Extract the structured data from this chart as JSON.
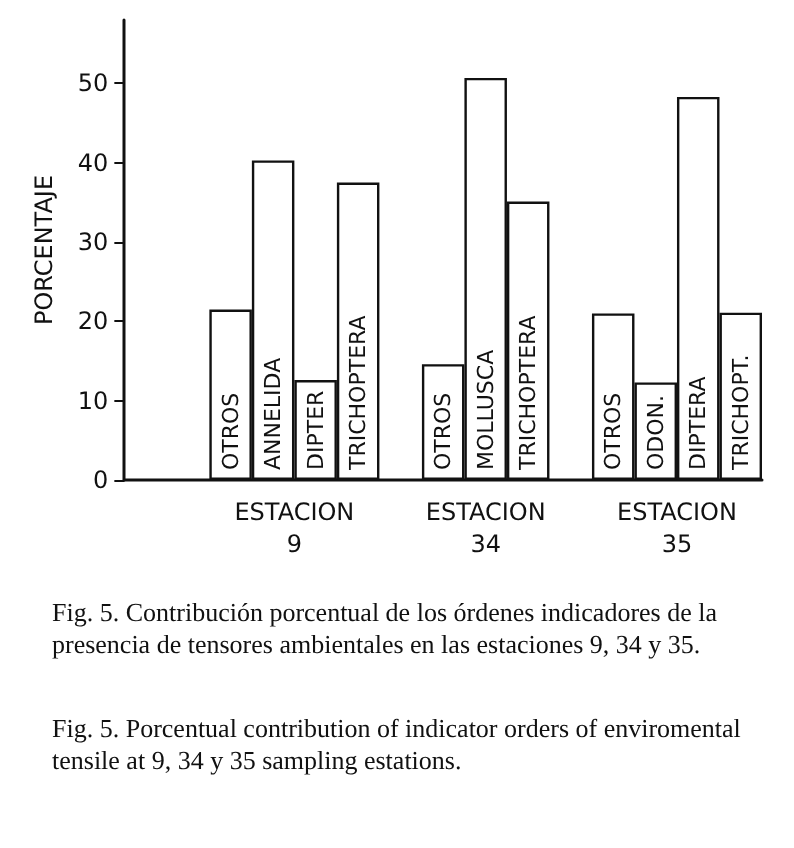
{
  "chart_data": {
    "type": "bar",
    "ylabel": "PORCENTAJE",
    "categories": [
      null,
      null,
      "OTROS",
      "ANNELIDA",
      "DIPTER",
      "TRICHOPTERA",
      null,
      "OTROS",
      "MOLLUSCA",
      "TRICHOPTERA",
      null,
      "OTROS",
      "ODON.",
      "DIPTERA",
      "TRICHOPT."
    ],
    "values": [
      null,
      null,
      21.5,
      40.3,
      12.6,
      37.5,
      null,
      14.6,
      50.7,
      35.1,
      null,
      21.0,
      12.3,
      48.3,
      21.1
    ],
    "color": "#ffffff",
    "ylim": [
      0,
      58
    ],
    "yticks": [
      0,
      10,
      20,
      30,
      40,
      50
    ],
    "annotations": [
      "ESTACION\n9",
      "ESTACION\n34",
      "ESTACION\n35",
      "Fig. 5. Contribución porcentual de los órdenes indicadores de la presencia de tensores ambientales en las estaciones 9, 34 y 35.",
      "Fig. 5. Porcentual contribution of indicator orders of enviromental tensile at 9, 34 y 35 sampling estations."
    ]
  }
}
